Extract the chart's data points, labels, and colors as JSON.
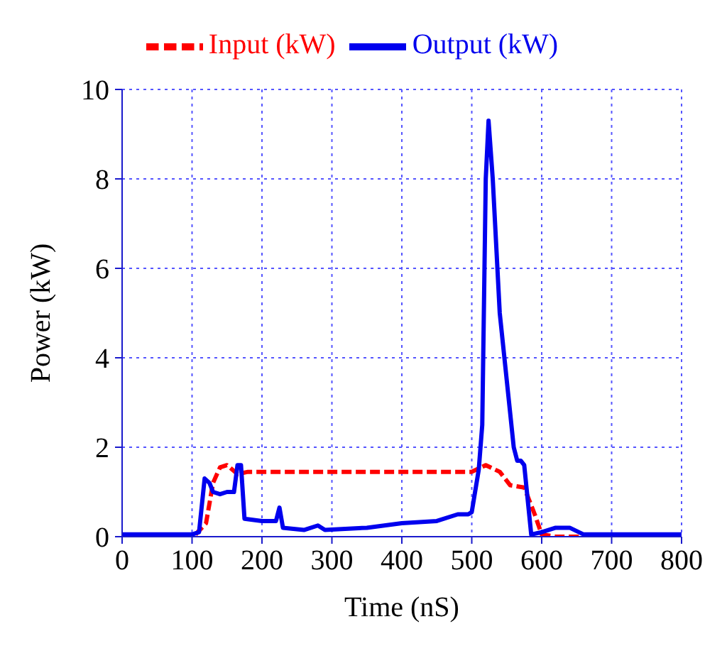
{
  "chart_data": {
    "type": "line",
    "xlabel": "Time (nS)",
    "ylabel": "Power (kW)",
    "xlim": [
      0,
      800
    ],
    "xticks": [
      0,
      100,
      200,
      300,
      400,
      500,
      600,
      700,
      800
    ],
    "ylim": [
      0,
      10
    ],
    "yticks": [
      0,
      2,
      4,
      6,
      8,
      10
    ],
    "grid": true,
    "legend": "top",
    "marker": "none",
    "series": [
      {
        "name": "Input (kW)",
        "color": "#ff0000",
        "line_style": "dashed",
        "x": [
          105,
          120,
          130,
          140,
          150,
          165,
          180,
          300,
          500,
          520,
          540,
          555,
          575,
          590,
          600,
          620,
          655
        ],
        "values": [
          0.05,
          0.3,
          1.2,
          1.55,
          1.6,
          1.4,
          1.45,
          1.45,
          1.45,
          1.6,
          1.45,
          1.15,
          1.1,
          0.5,
          0.05,
          0.0,
          0.0
        ]
      },
      {
        "name": "Output (kW)",
        "color": "#0000ee",
        "line_style": "solid",
        "x": [
          0,
          50,
          100,
          110,
          118,
          125,
          130,
          140,
          150,
          160,
          165,
          170,
          175,
          200,
          220,
          225,
          230,
          260,
          280,
          290,
          350,
          400,
          450,
          480,
          495,
          500,
          510,
          515,
          520,
          524,
          530,
          540,
          550,
          560,
          565,
          570,
          575,
          585,
          600,
          620,
          640,
          660,
          700,
          800
        ],
        "values": [
          0.05,
          0.05,
          0.05,
          0.1,
          1.3,
          1.2,
          1.0,
          0.95,
          1.0,
          1.0,
          1.6,
          1.6,
          0.4,
          0.35,
          0.35,
          0.65,
          0.2,
          0.15,
          0.25,
          0.15,
          0.2,
          0.3,
          0.35,
          0.5,
          0.5,
          0.55,
          1.5,
          2.5,
          8.0,
          9.3,
          8.0,
          5.0,
          3.5,
          2.0,
          1.7,
          1.7,
          1.6,
          0.05,
          0.1,
          0.2,
          0.2,
          0.05,
          0.05,
          0.05
        ]
      }
    ]
  }
}
